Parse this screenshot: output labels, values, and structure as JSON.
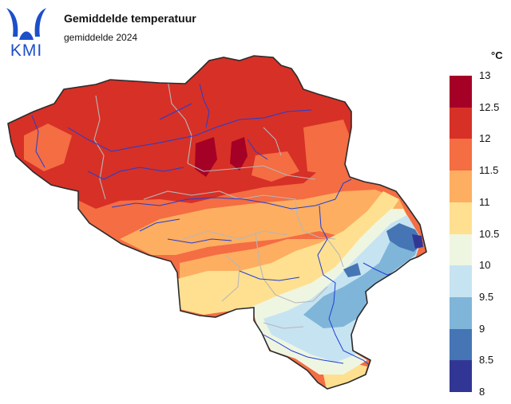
{
  "header": {
    "logo_text": "KMI",
    "title": "Gemiddelde temperatuur",
    "subtitle": "gemiddelde 2024"
  },
  "legend": {
    "unit": "°C",
    "ticks": [
      "13",
      "12.5",
      "12",
      "11.5",
      "11",
      "10.5",
      "10",
      "9.5",
      "9",
      "8.5",
      "8"
    ],
    "colors": [
      "#a50026",
      "#d73027",
      "#f46d43",
      "#fdae61",
      "#fee090",
      "#eef6e2",
      "#c6e3f1",
      "#7fb5d9",
      "#4575b4",
      "#313695"
    ]
  },
  "map": {
    "variable": "mean temperature",
    "region": "Belgium"
  }
}
